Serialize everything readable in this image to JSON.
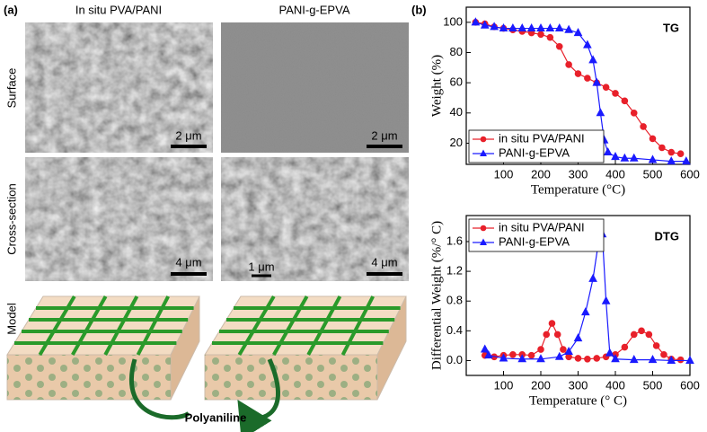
{
  "panel_a": {
    "label": "(a)",
    "columns": [
      "In situ PVA/PANI",
      "PANI-g-EPVA"
    ],
    "rows": [
      "Surface",
      "Cross-section",
      "Model"
    ],
    "scale_bars": [
      "2 μm",
      "2 μm",
      "4 μm",
      "4 μm",
      "1 μm"
    ],
    "model_label": "Polyaniline"
  },
  "panel_b": {
    "label": "(b)"
  },
  "chart_data": [
    {
      "type": "line",
      "annotation": "TG",
      "x_label": "Temperature (°C)",
      "y_label": "Weight (%)",
      "xlim": [
        0,
        600
      ],
      "ylim": [
        6,
        110
      ],
      "xticks": [
        100,
        200,
        300,
        400,
        500,
        600
      ],
      "yticks": [
        20,
        40,
        60,
        80,
        100
      ],
      "legend": "lower left",
      "series": [
        {
          "name": "in situ PVA/PANI",
          "color": "#e8202a",
          "marker": "circle",
          "x": [
            25,
            50,
            75,
            100,
            125,
            150,
            175,
            200,
            225,
            250,
            275,
            300,
            325,
            350,
            375,
            400,
            425,
            450,
            475,
            500,
            525,
            550,
            575
          ],
          "values": [
            100,
            99,
            97,
            96,
            95,
            94,
            93,
            92,
            90,
            84,
            72,
            66,
            63,
            60,
            57,
            53,
            48,
            40,
            31,
            23,
            17,
            14,
            13
          ]
        },
        {
          "name": "PANI-g-EPVA",
          "color": "#1a1aff",
          "marker": "triangle",
          "x": [
            25,
            50,
            75,
            100,
            125,
            150,
            175,
            200,
            225,
            250,
            275,
            300,
            325,
            340,
            350,
            360,
            370,
            380,
            400,
            425,
            450,
            500,
            550,
            590
          ],
          "values": [
            100,
            98,
            97,
            96,
            96,
            96,
            96,
            96,
            96,
            96,
            95,
            93,
            85,
            75,
            60,
            40,
            22,
            14,
            11,
            10,
            10,
            9,
            8,
            8
          ]
        }
      ]
    },
    {
      "type": "line",
      "annotation": "DTG",
      "x_label": "Temperature (° C)",
      "y_label": "Differential Weight (%/° C)",
      "xlim": [
        0,
        600
      ],
      "ylim": [
        -0.2,
        1.95
      ],
      "xticks": [
        100,
        200,
        300,
        400,
        500,
        600
      ],
      "yticks": [
        {
          "value": 0,
          "label": "0.0"
        },
        0.4,
        0.8,
        1.2,
        1.6
      ],
      "legend": "upper left",
      "series": [
        {
          "name": "in situ PVA/PANI",
          "color": "#e8202a",
          "marker": "circle",
          "x": [
            50,
            75,
            100,
            125,
            150,
            175,
            200,
            215,
            230,
            245,
            260,
            275,
            300,
            325,
            350,
            375,
            400,
            425,
            450,
            470,
            490,
            510,
            530,
            550,
            575
          ],
          "values": [
            0.07,
            0.05,
            0.07,
            0.08,
            0.08,
            0.07,
            0.15,
            0.35,
            0.5,
            0.35,
            0.15,
            0.05,
            0.03,
            0.02,
            0.03,
            0.05,
            0.08,
            0.18,
            0.35,
            0.4,
            0.35,
            0.2,
            0.08,
            0.02,
            0.01
          ]
        },
        {
          "name": "PANI-g-EPVA",
          "color": "#1a1aff",
          "marker": "triangle",
          "x": [
            50,
            60,
            100,
            150,
            200,
            250,
            275,
            300,
            320,
            340,
            355,
            365,
            375,
            385,
            400,
            450,
            500,
            550,
            600
          ],
          "values": [
            0.15,
            0.07,
            0.03,
            0.02,
            0.02,
            0.05,
            0.12,
            0.3,
            0.65,
            1.1,
            1.6,
            1.7,
            0.8,
            0.1,
            0.02,
            0.01,
            0.01,
            0,
            0
          ]
        }
      ]
    }
  ]
}
